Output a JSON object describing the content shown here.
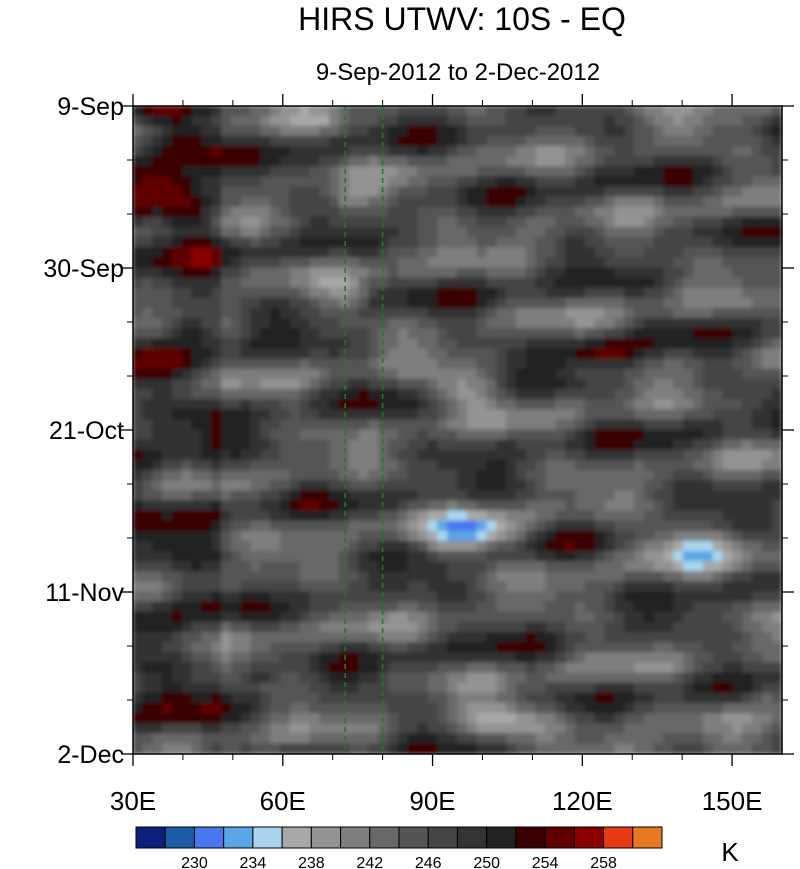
{
  "chart_data": {
    "type": "heatmap",
    "title": "HIRS UTWV: 10S - EQ",
    "subtitle": "9-Sep-2012 to 2-Dec-2012",
    "x_ticks": [
      "30E",
      "60E",
      "90E",
      "120E",
      "150E"
    ],
    "x_tick_values": [
      30,
      60,
      90,
      120,
      150
    ],
    "xlim": [
      30,
      160
    ],
    "y_ticks": [
      "9-Sep",
      "30-Sep",
      "21-Oct",
      "11-Nov",
      "2-Dec"
    ],
    "y_tick_days": [
      0,
      21,
      42,
      63,
      84
    ],
    "ylim_days": [
      0,
      84
    ],
    "reference_lines_lon": [
      72.5,
      80
    ],
    "reference_line_color": "#1a7f1a",
    "colorbar": {
      "unit": "K",
      "labels": [
        "230",
        "234",
        "238",
        "242",
        "246",
        "250",
        "254",
        "258"
      ],
      "colors": [
        "#0c1f7a",
        "#1c5ca6",
        "#4877f0",
        "#5aa6e6",
        "#a9d6ee",
        "#a8a8a8",
        "#939393",
        "#7e7e7e",
        "#686868",
        "#545454",
        "#444444",
        "#333333",
        "#232323",
        "#3a0000",
        "#610000",
        "#8c0000",
        "#e83a12",
        "#e87722"
      ]
    }
  }
}
